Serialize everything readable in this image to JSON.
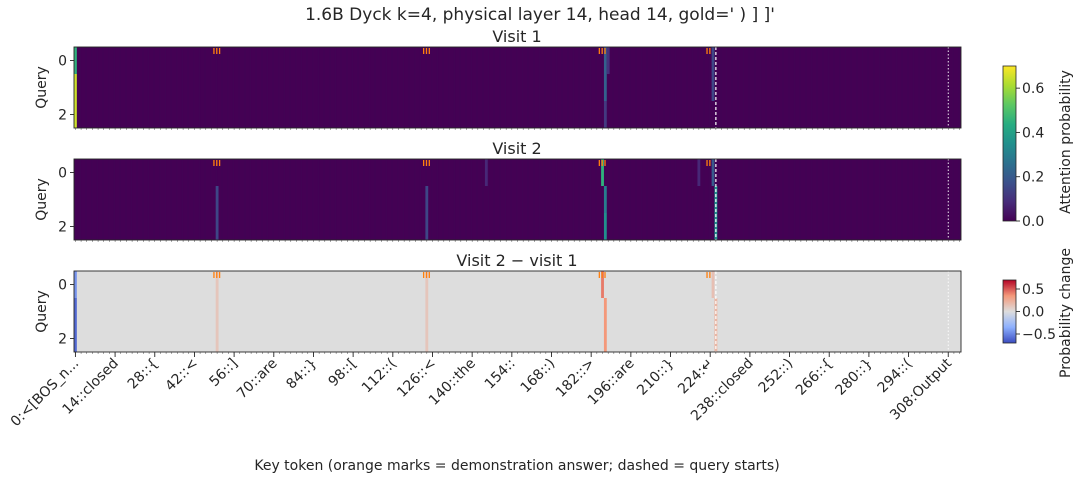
{
  "title": "1.6B Dyck k=4, physical layer 14, head 14, gold=' ) ] ]'",
  "colors": {
    "background_viridis": "#440154",
    "diff_zero": "#dddddd",
    "orange_marks": "#ff7f0e",
    "dashed_line": "#ffffff"
  },
  "chart_data": {
    "type": "heatmap",
    "panels": [
      {
        "title": "Visit 1",
        "ylabel": "Query",
        "yticks": [
          "0",
          "2"
        ],
        "hot_cells": [
          {
            "col": 0,
            "rows": [
              0
            ],
            "value": 0.45
          },
          {
            "col": 0,
            "rows": [
              1,
              2
            ],
            "value": 0.65
          },
          {
            "col": 187,
            "rows": [
              0,
              1
            ],
            "value": 0.22
          },
          {
            "col": 187,
            "rows": [
              2
            ],
            "value": 0.12
          },
          {
            "col": 188,
            "rows": [
              0
            ],
            "value": 0.1
          },
          {
            "col": 225,
            "rows": [
              0,
              1
            ],
            "value": 0.15
          }
        ]
      },
      {
        "title": "Visit 2",
        "ylabel": "Query",
        "yticks": [
          "0",
          "2"
        ],
        "hot_cells": [
          {
            "col": 50,
            "rows": [
              1,
              2
            ],
            "value": 0.15
          },
          {
            "col": 124,
            "rows": [
              1,
              2
            ],
            "value": 0.15
          },
          {
            "col": 145,
            "rows": [
              0
            ],
            "value": 0.08
          },
          {
            "col": 186,
            "rows": [
              0
            ],
            "value": 0.45
          },
          {
            "col": 187,
            "rows": [
              1
            ],
            "value": 0.3
          },
          {
            "col": 187,
            "rows": [
              2
            ],
            "value": 0.35
          },
          {
            "col": 225,
            "rows": [
              0
            ],
            "value": 0.2
          },
          {
            "col": 226,
            "rows": [
              1,
              2
            ],
            "value": 0.35
          },
          {
            "col": 220,
            "rows": [
              0
            ],
            "value": 0.08
          }
        ]
      },
      {
        "title": "Visit 2 − visit 1",
        "ylabel": "Query",
        "yticks": [
          "0",
          "2"
        ],
        "diff_cells": [
          {
            "col": 0,
            "rows": [
              0
            ],
            "value": -0.45
          },
          {
            "col": 0,
            "rows": [
              1,
              2
            ],
            "value": -0.6
          },
          {
            "col": 50,
            "rows": [
              0,
              1,
              2
            ],
            "value": 0.12
          },
          {
            "col": 124,
            "rows": [
              0,
              1,
              2
            ],
            "value": 0.12
          },
          {
            "col": 186,
            "rows": [
              0
            ],
            "value": 0.42
          },
          {
            "col": 187,
            "rows": [
              1,
              2
            ],
            "value": 0.35
          },
          {
            "col": 225,
            "rows": [
              0
            ],
            "value": 0.15
          },
          {
            "col": 226,
            "rows": [
              1,
              2
            ],
            "value": 0.2
          }
        ]
      }
    ],
    "n_cols": 313,
    "n_rows": 3,
    "orange_mark_cols": [
      [
        49,
        50,
        51
      ],
      [
        123,
        124,
        125
      ],
      [
        185,
        186,
        187
      ],
      [
        223,
        224
      ]
    ],
    "dashed_query_cols": [
      226,
      308
    ],
    "xlabel": "Key token (orange marks = demonstration answer; dashed = query starts)",
    "xticks": [
      {
        "pos": 0,
        "label": "0:<[BOS_n..."
      },
      {
        "pos": 14,
        "label": "14::closed"
      },
      {
        "pos": 28,
        "label": "28::{"
      },
      {
        "pos": 42,
        "label": "42::<"
      },
      {
        "pos": 56,
        "label": "56::]"
      },
      {
        "pos": 70,
        "label": "70::are"
      },
      {
        "pos": 84,
        "label": "84::}"
      },
      {
        "pos": 98,
        "label": "98::["
      },
      {
        "pos": 112,
        "label": "112::("
      },
      {
        "pos": 126,
        "label": "126::<"
      },
      {
        "pos": 140,
        "label": "140::the"
      },
      {
        "pos": 154,
        "label": "154::"
      },
      {
        "pos": 168,
        "label": "168::)"
      },
      {
        "pos": 182,
        "label": "182::>"
      },
      {
        "pos": 196,
        "label": "196::are"
      },
      {
        "pos": 210,
        "label": "210::}"
      },
      {
        "pos": 224,
        "label": "224:↵"
      },
      {
        "pos": 238,
        "label": "238::closed"
      },
      {
        "pos": 252,
        "label": "252::)"
      },
      {
        "pos": 266,
        "label": "266::{"
      },
      {
        "pos": 280,
        "label": "280::}"
      },
      {
        "pos": 294,
        "label": "294::("
      },
      {
        "pos": 308,
        "label": "308:Output"
      }
    ],
    "colorbar_attention": {
      "label": "Attention probability",
      "range": [
        0,
        0.7
      ],
      "ticks": [
        "0.0",
        "0.2",
        "0.4",
        "0.6"
      ]
    },
    "colorbar_change": {
      "label": "Probability change",
      "range": [
        -0.7,
        0.7
      ],
      "ticks": [
        "0.5",
        "0.0",
        "−0.5"
      ]
    }
  }
}
